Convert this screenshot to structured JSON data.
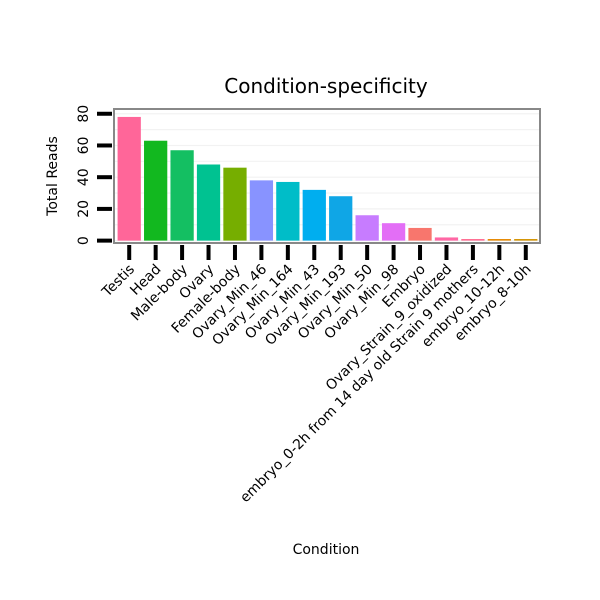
{
  "chart_data": {
    "type": "bar",
    "title": "Condition-specificity",
    "xlabel": "Condition",
    "ylabel": "Total Reads",
    "ylim": [
      -1.5,
      83
    ],
    "yticks": [
      0,
      20,
      40,
      60,
      80
    ],
    "grid": true,
    "legend": "none",
    "categories": [
      "Testis",
      "Head",
      "Male-body",
      "Ovary",
      "Female-body",
      "Ovary_Min_46",
      "Ovary_Min_164",
      "Ovary_Min_43",
      "Ovary_Min_193",
      "Ovary_Min_50",
      "Ovary_Min_98",
      "Embryo",
      "Ovary_Strain_9_oxidized",
      "embryo_0-2h from 14 day old Strain 9 mothers",
      "embryo_10-12h",
      "embryo_8-10h"
    ],
    "values": [
      78,
      63,
      57,
      48,
      46,
      38,
      37,
      32,
      28,
      16,
      11,
      8,
      2,
      1,
      1,
      1
    ],
    "colors": [
      "#FF6699",
      "#12B81F",
      "#14BF62",
      "#00C291",
      "#76AE00",
      "#8893FF",
      "#00BDC8",
      "#00AEEF",
      "#0FA6E6",
      "#C77CFF",
      "#E36EF6",
      "#F8766D",
      "#FF67A4",
      "#FF6C91",
      "#E58700",
      "#D39200"
    ]
  }
}
